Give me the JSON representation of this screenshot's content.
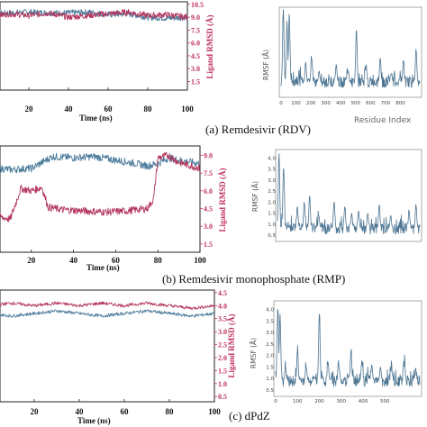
{
  "captions": {
    "a": "(a) Remdesivir (RDV)",
    "b": "(b) Remdesivir monophosphate (RMP)",
    "c": "(c) dPdZ"
  },
  "colors": {
    "protein": "#4a7a9a",
    "ligand": "#b3345c",
    "rmsf": "#4d7592",
    "ligand_axis": "#c0305a"
  },
  "chart_data": [
    {
      "id": "rmsd-a",
      "type": "line",
      "xlabel": "Time (ns)",
      "ylabel_right": "Ligand RMSD (Å)",
      "x_ticks": [
        "20",
        "40",
        "60",
        "80",
        "100"
      ],
      "x_tick_values": [
        20,
        40,
        60,
        80,
        100
      ],
      "xlim": [
        0,
        100
      ],
      "right_ticks": [
        "10.5",
        "9.0",
        "7.5",
        "6.0",
        "4.5",
        "3.0",
        "1.5"
      ],
      "right_tick_values": [
        10.5,
        9.0,
        7.5,
        6.0,
        4.5,
        3.0,
        1.5
      ],
      "ylim_right": [
        0.5,
        10.8
      ],
      "series": [
        {
          "role": "protein",
          "approx_profile": [
            [
              0,
              9.3
            ],
            [
              10,
              9.5
            ],
            [
              20,
              9.6
            ],
            [
              30,
              9.5
            ],
            [
              40,
              9.5
            ],
            [
              50,
              9.6
            ],
            [
              60,
              9.3
            ],
            [
              70,
              9.4
            ],
            [
              80,
              9.0
            ],
            [
              90,
              8.9
            ],
            [
              100,
              9.0
            ]
          ]
        },
        {
          "role": "ligand",
          "approx_profile": [
            [
              0,
              9.0
            ],
            [
              10,
              9.4
            ],
            [
              20,
              9.2
            ],
            [
              30,
              9.5
            ],
            [
              40,
              9.0
            ],
            [
              50,
              9.2
            ],
            [
              60,
              9.4
            ],
            [
              70,
              9.6
            ],
            [
              80,
              9.2
            ],
            [
              90,
              9.3
            ],
            [
              100,
              9.0
            ]
          ]
        }
      ]
    },
    {
      "id": "rmsd-b",
      "type": "line",
      "xlabel": "Time (ns)",
      "ylabel_right": "Ligand RMSD (Å)",
      "x_ticks": [
        "20",
        "40",
        "60",
        "80",
        "100"
      ],
      "x_tick_values": [
        20,
        40,
        60,
        80,
        100
      ],
      "xlim": [
        0,
        100
      ],
      "right_ticks": [
        "9.0",
        "7.5",
        "6.0",
        "4.5",
        "3.0",
        "1.5"
      ],
      "right_tick_values": [
        9.0,
        7.5,
        6.0,
        4.5,
        3.0,
        1.5
      ],
      "ylim_right": [
        0.8,
        9.8
      ],
      "series": [
        {
          "role": "protein",
          "approx_profile": [
            [
              0,
              8.0
            ],
            [
              10,
              7.8
            ],
            [
              20,
              7.9
            ],
            [
              25,
              8.4
            ],
            [
              30,
              8.9
            ],
            [
              40,
              8.8
            ],
            [
              50,
              8.9
            ],
            [
              60,
              8.6
            ],
            [
              70,
              8.3
            ],
            [
              75,
              8.1
            ],
            [
              80,
              8.3
            ],
            [
              85,
              8.8
            ],
            [
              90,
              8.6
            ],
            [
              100,
              8.3
            ]
          ]
        },
        {
          "role": "ligand",
          "approx_profile": [
            [
              0,
              4.6
            ],
            [
              5,
              3.8
            ],
            [
              10,
              3.6
            ],
            [
              15,
              6.2
            ],
            [
              20,
              6.0
            ],
            [
              25,
              6.3
            ],
            [
              28,
              4.6
            ],
            [
              35,
              4.4
            ],
            [
              45,
              4.3
            ],
            [
              55,
              4.2
            ],
            [
              65,
              4.3
            ],
            [
              75,
              4.5
            ],
            [
              78,
              5.3
            ],
            [
              80,
              8.8
            ],
            [
              85,
              9.0
            ],
            [
              90,
              8.4
            ],
            [
              100,
              7.9
            ]
          ]
        }
      ]
    },
    {
      "id": "rmsd-c",
      "type": "line",
      "xlabel": "Time (ns)",
      "ylabel_right": "Ligand RMSD (Å)",
      "x_ticks": [
        "20",
        "40",
        "60",
        "80",
        "100"
      ],
      "x_tick_values": [
        20,
        40,
        60,
        80,
        100
      ],
      "xlim": [
        0,
        100
      ],
      "right_ticks": [
        "4.5",
        "4.0",
        "3.5",
        "3.0",
        "2.5",
        "2.0",
        "1.5",
        "1.0",
        "0.5"
      ],
      "right_tick_values": [
        4.5,
        4.0,
        3.5,
        3.0,
        2.5,
        2.0,
        1.5,
        1.0,
        0.5
      ],
      "ylim_right": [
        0.3,
        4.6
      ],
      "series": [
        {
          "role": "protein",
          "approx_profile": [
            [
              0,
              3.7
            ],
            [
              10,
              3.6
            ],
            [
              20,
              3.7
            ],
            [
              30,
              3.8
            ],
            [
              40,
              3.7
            ],
            [
              50,
              3.6
            ],
            [
              60,
              3.7
            ],
            [
              70,
              3.8
            ],
            [
              80,
              3.7
            ],
            [
              90,
              3.6
            ],
            [
              100,
              3.7
            ]
          ]
        },
        {
          "role": "ligand",
          "approx_profile": [
            [
              0,
              4.0
            ],
            [
              10,
              4.1
            ],
            [
              20,
              4.0
            ],
            [
              30,
              4.1
            ],
            [
              40,
              4.0
            ],
            [
              50,
              4.1
            ],
            [
              60,
              4.0
            ],
            [
              70,
              4.1
            ],
            [
              80,
              4.0
            ],
            [
              90,
              3.9
            ],
            [
              100,
              4.0
            ]
          ]
        }
      ]
    },
    {
      "id": "rmsf-a",
      "type": "line",
      "ylabel": "RMSF (Å)",
      "xlabel": "Residue Index",
      "x_ticks": [
        "0",
        "100",
        "200",
        "300",
        "400",
        "500",
        "600",
        "700",
        "800"
      ],
      "x_tick_values": [
        0,
        100,
        200,
        300,
        400,
        500,
        600,
        700,
        800
      ],
      "xlim": [
        0,
        930
      ],
      "ylim": [
        0.3,
        4.2
      ],
      "peaks": [
        [
          15,
          4.2
        ],
        [
          40,
          3.5
        ],
        [
          55,
          4.0
        ],
        [
          165,
          1.8
        ],
        [
          205,
          2.0
        ],
        [
          255,
          1.4
        ],
        [
          370,
          1.7
        ],
        [
          450,
          1.4
        ],
        [
          505,
          3.3
        ],
        [
          570,
          1.7
        ],
        [
          665,
          2.0
        ],
        [
          740,
          1.3
        ],
        [
          820,
          1.9
        ],
        [
          905,
          2.4
        ]
      ],
      "baseline": 0.9
    },
    {
      "id": "rmsf-b",
      "type": "line",
      "ylabel": "RMSF (Å)",
      "y_ticks": [
        "4.0",
        "3.5",
        "3.0",
        "2.5",
        "2.0",
        "1.5",
        "1.0",
        "0.5"
      ],
      "y_tick_values": [
        4.0,
        3.5,
        3.0,
        2.5,
        2.0,
        1.5,
        1.0,
        0.5
      ],
      "xlim": [
        0,
        930
      ],
      "ylim": [
        0.3,
        4.3
      ],
      "peaks": [
        [
          10,
          4.2
        ],
        [
          40,
          3.6
        ],
        [
          130,
          1.8
        ],
        [
          175,
          2.0
        ],
        [
          210,
          2.3
        ],
        [
          270,
          1.4
        ],
        [
          370,
          2.0
        ],
        [
          440,
          1.8
        ],
        [
          485,
          1.5
        ],
        [
          530,
          1.6
        ],
        [
          590,
          1.5
        ],
        [
          665,
          1.9
        ],
        [
          740,
          1.4
        ],
        [
          860,
          1.6
        ],
        [
          905,
          1.9
        ]
      ],
      "baseline": 0.8
    },
    {
      "id": "rmsf-c",
      "type": "line",
      "ylabel": "RMSF (Å)",
      "y_ticks": [
        "4.0",
        "3.5",
        "3.0",
        "2.5",
        "2.0",
        "1.5",
        "1.0",
        "0.5"
      ],
      "y_tick_values": [
        4.0,
        3.5,
        3.0,
        2.5,
        2.0,
        1.5,
        1.0,
        0.5
      ],
      "x_ticks": [
        "0",
        "100",
        "200",
        "300",
        "400",
        "500"
      ],
      "x_tick_values": [
        0,
        100,
        200,
        300,
        400,
        500
      ],
      "xlim": [
        0,
        660
      ],
      "ylim": [
        0.3,
        4.3
      ],
      "peaks": [
        [
          10,
          4.1
        ],
        [
          20,
          3.8
        ],
        [
          45,
          1.5
        ],
        [
          100,
          2.2
        ],
        [
          140,
          1.5
        ],
        [
          200,
          3.8
        ],
        [
          240,
          1.7
        ],
        [
          290,
          1.5
        ],
        [
          345,
          2.2
        ],
        [
          395,
          1.8
        ],
        [
          440,
          1.6
        ],
        [
          480,
          1.5
        ],
        [
          530,
          1.4
        ],
        [
          590,
          1.6
        ],
        [
          640,
          1.3
        ]
      ],
      "baseline": 0.9
    }
  ]
}
